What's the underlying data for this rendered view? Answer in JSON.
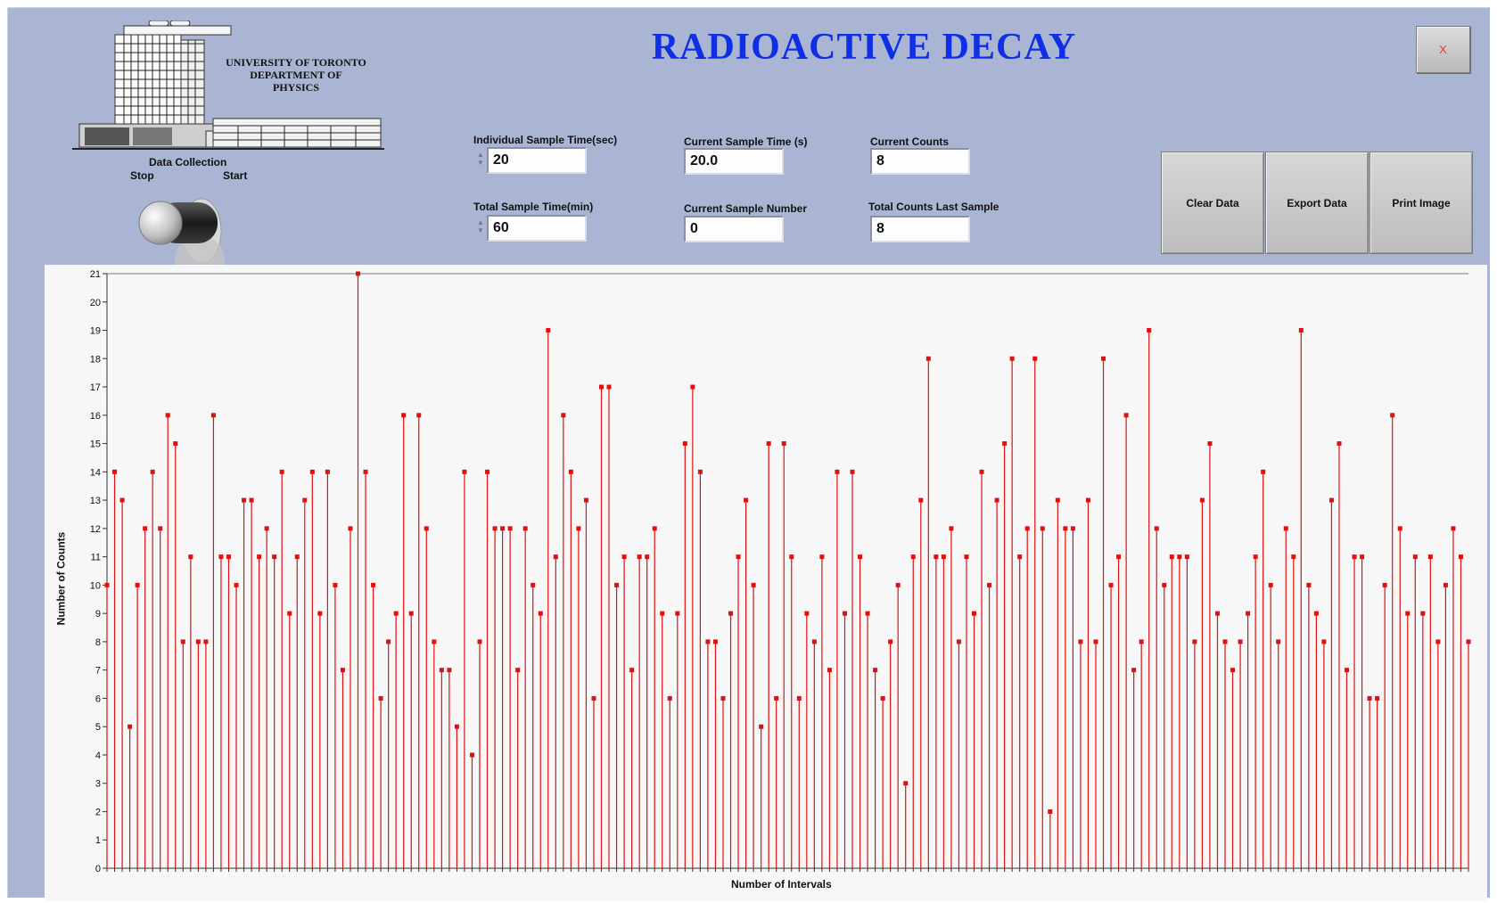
{
  "header": {
    "title": "RADIOACTIVE DECAY",
    "close_label": "X",
    "logo_lines": [
      "UNIVERSITY OF TORONTO",
      "DEPARTMENT OF",
      "PHYSICS"
    ]
  },
  "controls": {
    "toggle": {
      "title": "Data Collection",
      "off_label": "Stop",
      "on_label": "Start"
    },
    "individual_sample_time": {
      "label": "Individual Sample Time(sec)",
      "value": "20"
    },
    "total_sample_time": {
      "label": "Total Sample Time(min)",
      "value": "60"
    },
    "current_sample_time": {
      "label": "Current Sample Time (s)",
      "value": "20.0"
    },
    "current_sample_number": {
      "label": "Current Sample Number",
      "value": "0"
    },
    "current_counts": {
      "label": "Current Counts",
      "value": "8"
    },
    "total_counts_last_sample": {
      "label": "Total Counts Last Sample",
      "value": "8"
    }
  },
  "buttons": {
    "clear": "Clear Data",
    "export": "Export Data",
    "print": "Print Image"
  },
  "colors": {
    "title": "#0f2fe6",
    "panel": "#a9b5d2",
    "plot_line": "#e01010",
    "plot_marker": "#e01010"
  },
  "chart_data": {
    "type": "scatter",
    "style": "stem",
    "xlabel": "Number of Intervals",
    "ylabel": "Number of Counts",
    "ylim": [
      0,
      21
    ],
    "yticks": [
      0,
      1,
      2,
      3,
      4,
      5,
      6,
      7,
      8,
      9,
      10,
      11,
      12,
      13,
      14,
      15,
      16,
      17,
      18,
      19,
      20,
      21
    ],
    "grid": false,
    "series": [
      {
        "values": [
          10,
          14,
          13,
          5,
          10,
          12,
          14,
          12,
          16,
          15,
          8,
          11,
          8,
          8,
          16,
          11,
          11,
          10,
          13,
          13,
          11,
          12,
          11,
          14,
          9,
          11,
          13,
          14,
          9,
          14,
          10,
          7,
          12,
          21,
          14,
          10,
          6,
          8,
          9,
          16,
          9,
          16,
          12,
          8,
          7,
          7,
          5,
          14,
          4,
          8,
          14,
          12,
          12,
          12,
          7,
          12,
          10,
          9,
          19,
          11,
          16,
          14,
          12,
          13,
          6,
          17,
          17,
          10,
          11,
          7,
          11,
          11,
          12,
          9,
          6,
          9,
          15,
          17,
          14,
          8,
          8,
          6,
          9,
          11,
          13,
          10,
          5,
          15,
          6,
          15,
          11,
          6,
          9,
          8,
          11,
          7,
          14,
          9,
          14,
          11,
          9,
          7,
          6,
          8,
          10,
          3,
          11,
          13,
          18,
          11,
          11,
          12,
          8,
          11,
          9,
          14,
          10,
          13,
          15,
          18,
          11,
          12,
          18,
          12,
          2,
          13,
          12,
          12,
          8,
          13,
          8,
          18,
          10,
          11,
          16,
          7,
          8,
          19,
          12,
          10,
          11,
          11,
          11,
          8,
          13,
          15,
          9,
          8,
          7,
          8,
          9,
          11,
          14,
          10,
          8,
          12,
          11,
          19,
          10,
          9,
          8,
          13,
          15,
          7,
          11,
          11,
          6,
          6,
          10,
          16,
          12,
          9,
          11,
          9,
          11,
          8,
          10,
          12,
          11,
          8
        ]
      }
    ]
  }
}
